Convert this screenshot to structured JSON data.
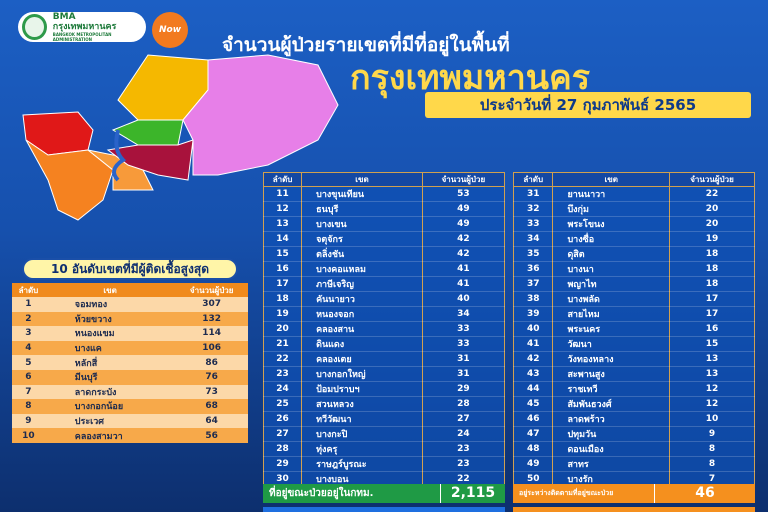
{
  "header": {
    "logo": {
      "name": "BMA",
      "thai": "กรุงเทพมหานคร",
      "sub": "BANGKOK METROPOLITAN ADMINISTRATION"
    },
    "now_badge": "Now",
    "title_line1": "จำนวนผู้ป่วยรายเขตที่มีที่อยู่ในพื้นที่",
    "title_line2": "กรุงเทพมหานคร",
    "date": "ประจำวันที่ 27 กุมภาพันธ์ 2565"
  },
  "colors": {
    "accent_yellow": "#ffd84a",
    "orange": "#f08a1c",
    "green": "#1f9a45",
    "blue": "#1650ad"
  },
  "top10": {
    "title": "10 อันดับเขตที่มีผู้ติดเชื้อสูงสุด",
    "headers": [
      "ลำดับ",
      "เขต",
      "จำนวนผู้ป่วย"
    ],
    "rows": [
      [
        "1",
        "จอมทอง",
        "307"
      ],
      [
        "2",
        "ห้วยขวาง",
        "132"
      ],
      [
        "3",
        "หนองแขม",
        "114"
      ],
      [
        "4",
        "บางแค",
        "106"
      ],
      [
        "5",
        "หลักสี่",
        "86"
      ],
      [
        "6",
        "มีนบุรี",
        "76"
      ],
      [
        "7",
        "ลาดกระบัง",
        "73"
      ],
      [
        "8",
        "บางกอกน้อย",
        "68"
      ],
      [
        "9",
        "ประเวศ",
        "64"
      ],
      [
        "10",
        "คลองสามวา",
        "56"
      ]
    ]
  },
  "table_mid": {
    "headers": [
      "ลำดับ",
      "เขต",
      "จำนวนผู้ป่วย"
    ],
    "rows": [
      [
        "11",
        "บางขุนเทียน",
        "53"
      ],
      [
        "12",
        "ธนบุรี",
        "49"
      ],
      [
        "13",
        "บางเขน",
        "49"
      ],
      [
        "14",
        "จตุจักร",
        "42"
      ],
      [
        "15",
        "ตลิ่งชัน",
        "42"
      ],
      [
        "16",
        "บางคอแหลม",
        "41"
      ],
      [
        "17",
        "ภาษีเจริญ",
        "41"
      ],
      [
        "18",
        "คันนายาว",
        "40"
      ],
      [
        "19",
        "หนองจอก",
        "34"
      ],
      [
        "20",
        "คลองสาน",
        "33"
      ],
      [
        "21",
        "ดินแดง",
        "33"
      ],
      [
        "22",
        "คลองเตย",
        "31"
      ],
      [
        "23",
        "บางกอกใหญ่",
        "31"
      ],
      [
        "24",
        "ป้อมปราบฯ",
        "29"
      ],
      [
        "25",
        "สวนหลวง",
        "28"
      ],
      [
        "26",
        "ทวีวัฒนา",
        "27"
      ],
      [
        "27",
        "บางกะปิ",
        "24"
      ],
      [
        "28",
        "ทุ่งครุ",
        "23"
      ],
      [
        "29",
        "ราษฎร์บูรณะ",
        "23"
      ],
      [
        "30",
        "บางบอน",
        "22"
      ]
    ]
  },
  "table_right": {
    "headers": [
      "ลำดับ",
      "เขต",
      "จำนวนผู้ป่วย"
    ],
    "rows": [
      [
        "31",
        "ยานนาวา",
        "22"
      ],
      [
        "32",
        "บึงกุ่ม",
        "20"
      ],
      [
        "33",
        "พระโขนง",
        "20"
      ],
      [
        "34",
        "บางซื่อ",
        "19"
      ],
      [
        "35",
        "ดุสิต",
        "18"
      ],
      [
        "36",
        "บางนา",
        "18"
      ],
      [
        "37",
        "พญาไท",
        "18"
      ],
      [
        "38",
        "บางพลัด",
        "17"
      ],
      [
        "39",
        "สายไหม",
        "17"
      ],
      [
        "40",
        "พระนคร",
        "16"
      ],
      [
        "41",
        "วัฒนา",
        "15"
      ],
      [
        "42",
        "วังทองหลาง",
        "13"
      ],
      [
        "43",
        "สะพานสูง",
        "13"
      ],
      [
        "44",
        "ราชเทวี",
        "12"
      ],
      [
        "45",
        "สัมพันธวงศ์",
        "12"
      ],
      [
        "46",
        "ลาดพร้าว",
        "10"
      ],
      [
        "47",
        "ปทุมวัน",
        "9"
      ],
      [
        "48",
        "ดอนเมือง",
        "8"
      ],
      [
        "49",
        "สาทร",
        "8"
      ],
      [
        "50",
        "บางรัก",
        "7"
      ]
    ]
  },
  "summary": {
    "in_bkk_label": "ที่อยู่ขณะป่วยอยู่ในกทม.",
    "in_bkk_value": "2,115",
    "tracking_label": "อยู่ระหว่างติดตามที่อยู่ขณะป่วย",
    "tracking_value": "46"
  }
}
